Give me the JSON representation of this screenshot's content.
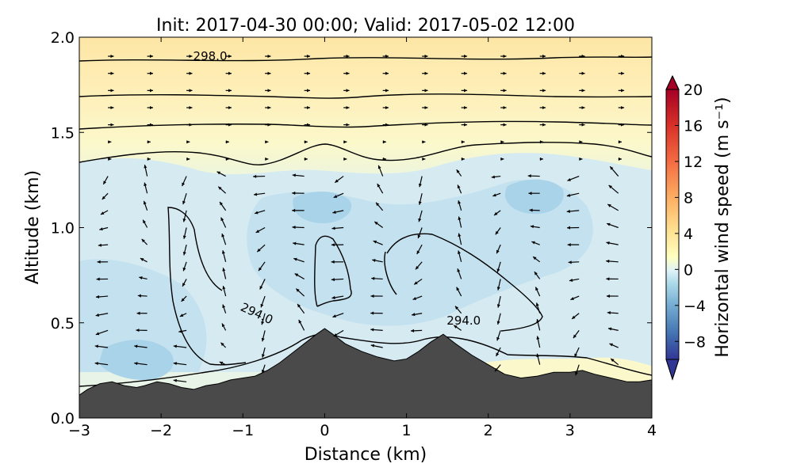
{
  "chart_data": {
    "type": "heatmap",
    "title": "Init: 2017-04-30 00:00; Valid: 2017-05-02 12:00",
    "xlabel": "Distance (km)",
    "ylabel": "Altitude (km)",
    "xlim": [
      -3,
      4
    ],
    "ylim": [
      0,
      2
    ],
    "x_ticks": [
      -3,
      -2,
      -1,
      0,
      1,
      2,
      3,
      4
    ],
    "x_tick_labels": [
      "−3",
      "−2",
      "−1",
      "0",
      "1",
      "2",
      "3",
      "4"
    ],
    "y_ticks": [
      0,
      0.5,
      1,
      1.5,
      2
    ],
    "y_tick_labels": [
      "0.0",
      "0.5",
      "1.0",
      "1.5",
      "2.0"
    ],
    "colorbar": {
      "label": "Horizontal wind speed (m s⁻¹)",
      "min": -10,
      "max": 20,
      "extend": "both",
      "ticks": [
        -8,
        -4,
        0,
        4,
        8,
        12,
        16,
        20
      ],
      "tick_labels": [
        "−8",
        "−4",
        "0",
        "4",
        "8",
        "12",
        "16",
        "20"
      ],
      "colormap": "RdYlBu_r"
    },
    "contour_labels": [
      {
        "text": "298.0",
        "x": -1.4,
        "y": 1.88
      },
      {
        "text": "294.0",
        "x": -0.85,
        "y": 0.53
      },
      {
        "text": "294.0",
        "x": 1.7,
        "y": 0.49
      }
    ],
    "terrain": {
      "x": [
        -3,
        -2.9,
        -2.75,
        -2.6,
        -2.45,
        -2.3,
        -2.2,
        -2.05,
        -1.9,
        -1.75,
        -1.6,
        -1.45,
        -1.3,
        -1.15,
        -1.0,
        -0.85,
        -0.7,
        -0.55,
        -0.4,
        -0.25,
        -0.1,
        0,
        0.1,
        0.25,
        0.45,
        0.65,
        0.85,
        1.0,
        1.15,
        1.3,
        1.45,
        1.6,
        1.8,
        2.0,
        2.2,
        2.4,
        2.6,
        2.8,
        3.0,
        3.15,
        3.3,
        3.5,
        3.7,
        3.85,
        4.0
      ],
      "y": [
        0.12,
        0.15,
        0.18,
        0.19,
        0.17,
        0.16,
        0.17,
        0.19,
        0.18,
        0.16,
        0.15,
        0.17,
        0.18,
        0.2,
        0.21,
        0.22,
        0.25,
        0.29,
        0.34,
        0.39,
        0.44,
        0.47,
        0.44,
        0.39,
        0.35,
        0.32,
        0.3,
        0.31,
        0.35,
        0.4,
        0.44,
        0.39,
        0.33,
        0.28,
        0.23,
        0.21,
        0.22,
        0.24,
        0.24,
        0.25,
        0.23,
        0.21,
        0.19,
        0.19,
        0.2
      ]
    }
  }
}
